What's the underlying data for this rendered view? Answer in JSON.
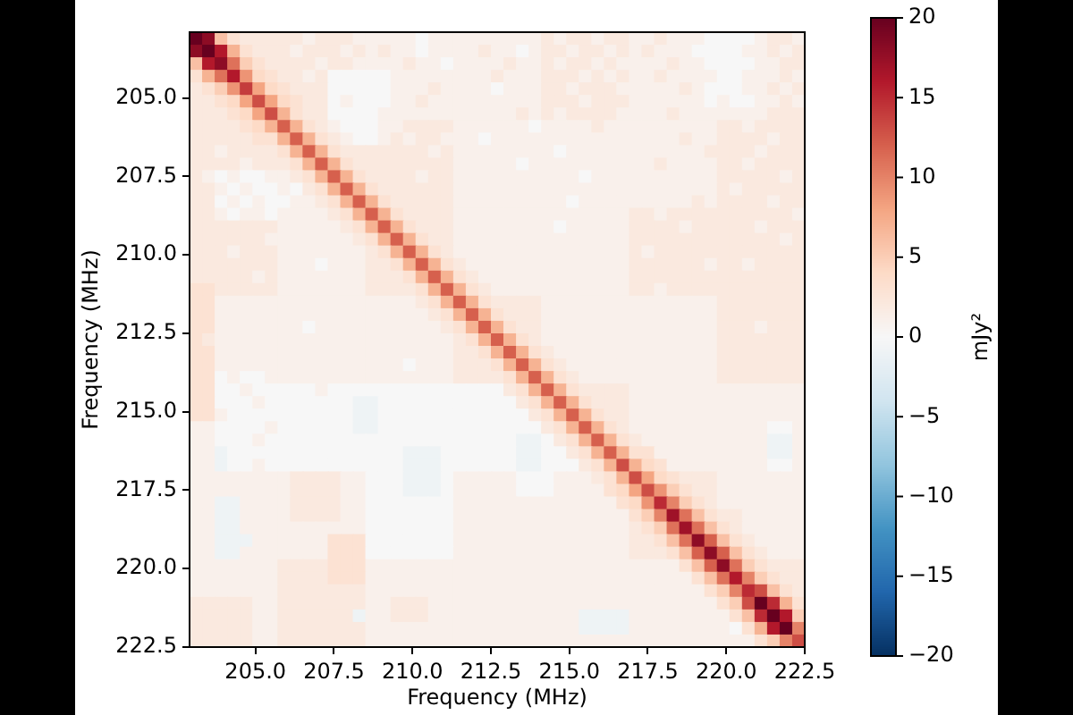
{
  "chart_data": {
    "type": "heatmap",
    "xlabel": "Frequency (MHz)",
    "ylabel": "Frequency (MHz)",
    "clabel": "mJy²",
    "x": [
      203.1,
      203.5,
      203.9,
      204.3,
      204.7,
      205.1,
      205.5,
      205.9,
      206.3,
      206.7,
      207.1,
      207.5,
      207.9,
      208.3,
      208.7,
      209.1,
      209.5,
      209.9,
      210.3,
      210.7,
      211.1,
      211.5,
      211.9,
      212.3,
      212.7,
      213.1,
      213.5,
      213.9,
      214.3,
      214.7,
      215.1,
      215.5,
      215.9,
      216.3,
      216.7,
      217.1,
      217.5,
      217.9,
      218.3,
      218.7,
      219.1,
      219.5,
      219.9,
      220.3,
      220.7,
      221.1,
      221.5,
      221.9,
      222.3
    ],
    "y": [
      203.1,
      203.5,
      203.9,
      204.3,
      204.7,
      205.1,
      205.5,
      205.9,
      206.3,
      206.7,
      207.1,
      207.5,
      207.9,
      208.3,
      208.7,
      209.1,
      209.5,
      209.9,
      210.3,
      210.7,
      211.1,
      211.5,
      211.9,
      212.3,
      212.7,
      213.1,
      213.5,
      213.9,
      214.3,
      214.7,
      215.1,
      215.5,
      215.9,
      216.3,
      216.7,
      217.1,
      217.5,
      217.9,
      218.3,
      218.7,
      219.1,
      219.5,
      219.9,
      220.3,
      220.7,
      221.1,
      221.5,
      221.9,
      222.3
    ],
    "xlim": [
      202.9,
      222.5
    ],
    "xticks": [
      {
        "value": 205,
        "label": "205.0"
      },
      207.5,
      {
        "value": 210,
        "label": "210.0"
      },
      212.5,
      {
        "value": 215,
        "label": "215.0"
      },
      217.5,
      {
        "value": 220,
        "label": "220.0"
      },
      222.5
    ],
    "ylim": [
      222.5,
      202.9
    ],
    "yticks": [
      {
        "value": 205,
        "label": "205.0"
      },
      207.5,
      {
        "value": 210,
        "label": "210.0"
      },
      212.5,
      {
        "value": 215,
        "label": "215.0"
      },
      217.5,
      {
        "value": 220,
        "label": "220.0"
      },
      222.5
    ],
    "clim": [
      -20,
      20
    ],
    "cticks": [
      {
        "value": -20,
        "label": "−20"
      },
      {
        "value": -15,
        "label": "−15"
      },
      {
        "value": -10,
        "label": "−10"
      },
      {
        "value": -5,
        "label": "−5"
      },
      0,
      5,
      10,
      15,
      20
    ],
    "cells": [
      [
        20,
        18,
        6,
        3,
        2,
        2,
        2,
        2,
        2,
        1,
        2,
        2,
        2,
        1,
        1,
        1,
        1,
        1,
        0,
        1,
        1,
        1,
        1,
        1,
        1,
        1,
        1,
        1,
        2,
        1,
        2,
        2,
        1,
        2,
        2,
        1,
        1,
        2,
        1,
        1,
        1,
        0,
        0,
        0,
        0,
        1,
        2,
        2,
        1
      ],
      [
        18,
        20,
        16,
        7,
        3,
        2,
        2,
        2,
        1,
        2,
        2,
        2,
        1,
        2,
        1,
        2,
        1,
        1,
        0,
        1,
        1,
        1,
        1,
        2,
        1,
        1,
        0,
        1,
        2,
        2,
        1,
        2,
        2,
        1,
        2,
        1,
        2,
        1,
        1,
        1,
        0,
        0,
        0,
        0,
        1,
        1,
        2,
        1,
        2
      ],
      [
        6,
        16,
        18,
        11,
        5,
        3,
        2,
        2,
        2,
        2,
        1,
        2,
        2,
        1,
        1,
        1,
        1,
        2,
        1,
        1,
        0,
        1,
        1,
        1,
        1,
        2,
        1,
        1,
        2,
        1,
        2,
        2,
        1,
        2,
        1,
        1,
        1,
        1,
        2,
        1,
        1,
        0,
        0,
        0,
        0,
        1,
        1,
        2,
        2
      ],
      [
        3,
        7,
        11,
        16,
        9,
        4,
        3,
        2,
        2,
        1,
        2,
        0,
        0,
        0,
        0,
        0,
        1,
        1,
        1,
        1,
        1,
        1,
        1,
        1,
        2,
        1,
        1,
        1,
        2,
        2,
        2,
        1,
        2,
        1,
        2,
        1,
        1,
        2,
        1,
        1,
        1,
        1,
        0,
        0,
        1,
        1,
        1,
        2,
        1
      ],
      [
        2,
        3,
        5,
        9,
        14,
        8,
        4,
        3,
        2,
        2,
        2,
        0,
        0,
        0,
        0,
        0,
        1,
        1,
        1,
        2,
        1,
        1,
        1,
        1,
        0,
        1,
        1,
        1,
        2,
        2,
        1,
        2,
        2,
        2,
        1,
        1,
        1,
        1,
        1,
        2,
        1,
        0,
        0,
        0,
        1,
        1,
        2,
        1,
        2
      ],
      [
        2,
        2,
        3,
        4,
        8,
        13,
        8,
        4,
        3,
        2,
        2,
        0,
        1,
        0,
        0,
        0,
        1,
        1,
        2,
        1,
        1,
        1,
        1,
        1,
        1,
        1,
        1,
        1,
        2,
        2,
        2,
        1,
        2,
        2,
        2,
        1,
        1,
        1,
        1,
        1,
        1,
        0,
        1,
        0,
        0,
        1,
        1,
        2,
        1
      ],
      [
        2,
        2,
        2,
        3,
        4,
        8,
        13,
        7,
        3,
        2,
        2,
        0,
        0,
        0,
        0,
        1,
        1,
        1,
        1,
        1,
        1,
        1,
        1,
        1,
        1,
        1,
        2,
        1,
        2,
        1,
        2,
        2,
        2,
        2,
        1,
        1,
        1,
        1,
        2,
        1,
        1,
        1,
        1,
        1,
        1,
        1,
        2,
        2,
        2
      ],
      [
        2,
        2,
        2,
        2,
        3,
        4,
        7,
        12,
        7,
        3,
        2,
        1,
        0,
        0,
        0,
        1,
        1,
        2,
        2,
        2,
        2,
        1,
        1,
        1,
        1,
        1,
        1,
        0,
        1,
        1,
        1,
        1,
        2,
        1,
        1,
        1,
        1,
        1,
        1,
        1,
        1,
        1,
        2,
        2,
        1,
        2,
        2,
        2,
        2
      ],
      [
        2,
        2,
        2,
        2,
        2,
        3,
        3,
        7,
        12,
        7,
        3,
        2,
        1,
        0,
        0,
        1,
        2,
        1,
        2,
        2,
        1,
        1,
        1,
        0,
        1,
        1,
        1,
        1,
        1,
        1,
        1,
        1,
        1,
        1,
        1,
        1,
        1,
        1,
        1,
        2,
        1,
        1,
        2,
        2,
        2,
        2,
        1,
        2,
        2
      ],
      [
        2,
        2,
        1,
        2,
        2,
        2,
        2,
        3,
        7,
        12,
        7,
        3,
        2,
        2,
        2,
        2,
        2,
        2,
        2,
        1,
        2,
        1,
        1,
        1,
        1,
        1,
        1,
        1,
        1,
        0,
        1,
        1,
        1,
        1,
        1,
        1,
        1,
        1,
        1,
        1,
        1,
        2,
        2,
        2,
        2,
        1,
        2,
        2,
        2
      ],
      [
        2,
        2,
        2,
        2,
        1,
        2,
        2,
        2,
        3,
        7,
        12,
        7,
        3,
        2,
        2,
        2,
        2,
        2,
        2,
        2,
        2,
        1,
        1,
        1,
        1,
        1,
        0,
        1,
        1,
        1,
        1,
        1,
        1,
        1,
        1,
        1,
        1,
        2,
        1,
        1,
        1,
        1,
        2,
        2,
        1,
        2,
        2,
        2,
        2
      ],
      [
        2,
        1,
        0,
        1,
        0,
        0,
        1,
        1,
        2,
        3,
        7,
        12,
        7,
        3,
        2,
        2,
        2,
        2,
        1,
        2,
        2,
        1,
        1,
        1,
        1,
        1,
        1,
        1,
        1,
        1,
        1,
        0,
        1,
        1,
        1,
        1,
        1,
        1,
        1,
        1,
        1,
        1,
        2,
        2,
        2,
        2,
        2,
        1,
        2
      ],
      [
        2,
        2,
        1,
        0,
        1,
        0,
        0,
        1,
        0,
        2,
        3,
        7,
        12,
        7,
        3,
        2,
        2,
        2,
        2,
        2,
        2,
        1,
        1,
        1,
        1,
        1,
        1,
        1,
        1,
        1,
        1,
        1,
        1,
        1,
        1,
        1,
        1,
        1,
        1,
        1,
        1,
        1,
        2,
        1,
        2,
        2,
        2,
        2,
        2
      ],
      [
        2,
        2,
        0,
        1,
        0,
        1,
        0,
        0,
        1,
        1,
        2,
        3,
        7,
        12,
        7,
        3,
        2,
        2,
        2,
        2,
        2,
        1,
        1,
        1,
        1,
        1,
        1,
        1,
        1,
        1,
        0,
        1,
        1,
        1,
        1,
        1,
        1,
        1,
        1,
        1,
        2,
        1,
        2,
        2,
        2,
        2,
        1,
        2,
        2
      ],
      [
        2,
        2,
        1,
        0,
        1,
        1,
        0,
        1,
        1,
        1,
        1,
        2,
        3,
        7,
        12,
        7,
        3,
        2,
        2,
        2,
        2,
        1,
        1,
        1,
        1,
        1,
        1,
        1,
        1,
        1,
        1,
        1,
        1,
        1,
        1,
        2,
        2,
        1,
        2,
        2,
        2,
        2,
        2,
        2,
        2,
        2,
        2,
        2,
        1
      ],
      [
        2,
        2,
        2,
        2,
        2,
        2,
        2,
        1,
        1,
        1,
        1,
        1,
        2,
        3,
        7,
        12,
        7,
        3,
        2,
        2,
        2,
        1,
        1,
        1,
        1,
        1,
        1,
        1,
        1,
        0,
        1,
        1,
        1,
        1,
        1,
        2,
        2,
        2,
        2,
        1,
        2,
        2,
        2,
        2,
        2,
        1,
        2,
        2,
        2
      ],
      [
        2,
        2,
        2,
        2,
        2,
        2,
        1,
        1,
        1,
        1,
        1,
        1,
        1,
        2,
        3,
        7,
        12,
        7,
        3,
        2,
        2,
        1,
        1,
        1,
        1,
        1,
        1,
        1,
        1,
        1,
        1,
        1,
        1,
        1,
        1,
        2,
        2,
        2,
        2,
        2,
        2,
        2,
        2,
        2,
        2,
        2,
        2,
        1,
        2
      ],
      [
        2,
        2,
        2,
        1,
        2,
        2,
        2,
        1,
        1,
        1,
        1,
        1,
        1,
        1,
        2,
        3,
        7,
        12,
        7,
        3,
        2,
        1,
        1,
        1,
        1,
        1,
        1,
        1,
        1,
        1,
        1,
        1,
        1,
        1,
        1,
        2,
        1,
        2,
        2,
        2,
        2,
        2,
        2,
        2,
        2,
        2,
        2,
        2,
        2
      ],
      [
        2,
        2,
        2,
        2,
        2,
        2,
        2,
        1,
        1,
        1,
        0,
        1,
        1,
        1,
        2,
        2,
        3,
        7,
        12,
        7,
        3,
        2,
        1,
        1,
        1,
        1,
        1,
        1,
        1,
        1,
        1,
        1,
        1,
        1,
        1,
        2,
        2,
        2,
        2,
        2,
        2,
        1,
        2,
        2,
        1,
        2,
        2,
        2,
        2
      ],
      [
        2,
        2,
        2,
        2,
        2,
        1,
        2,
        1,
        1,
        1,
        1,
        1,
        1,
        1,
        2,
        2,
        2,
        3,
        7,
        12,
        7,
        3,
        2,
        1,
        1,
        1,
        1,
        1,
        1,
        1,
        1,
        1,
        1,
        1,
        1,
        2,
        2,
        2,
        2,
        2,
        2,
        2,
        2,
        2,
        2,
        2,
        2,
        2,
        2
      ],
      [
        3,
        3,
        2,
        2,
        2,
        2,
        2,
        1,
        1,
        1,
        1,
        1,
        1,
        1,
        2,
        2,
        2,
        2,
        3,
        7,
        12,
        7,
        3,
        2,
        1,
        1,
        1,
        1,
        1,
        1,
        1,
        1,
        1,
        1,
        1,
        2,
        2,
        1,
        2,
        2,
        2,
        2,
        2,
        2,
        2,
        2,
        2,
        2,
        2
      ],
      [
        3,
        3,
        1,
        1,
        1,
        1,
        1,
        1,
        1,
        1,
        1,
        1,
        1,
        1,
        1,
        1,
        1,
        1,
        2,
        3,
        7,
        12,
        7,
        3,
        2,
        2,
        2,
        2,
        1,
        1,
        1,
        1,
        1,
        1,
        1,
        1,
        1,
        1,
        1,
        1,
        1,
        1,
        2,
        2,
        2,
        2,
        2,
        2,
        2
      ],
      [
        3,
        3,
        1,
        1,
        1,
        1,
        1,
        1,
        1,
        1,
        1,
        1,
        1,
        1,
        1,
        1,
        1,
        1,
        1,
        2,
        3,
        7,
        12,
        7,
        3,
        2,
        2,
        2,
        1,
        1,
        1,
        1,
        1,
        1,
        1,
        1,
        1,
        1,
        1,
        1,
        1,
        1,
        2,
        2,
        2,
        2,
        2,
        2,
        2
      ],
      [
        3,
        3,
        1,
        1,
        1,
        1,
        1,
        1,
        1,
        0,
        1,
        1,
        1,
        1,
        1,
        1,
        1,
        1,
        1,
        1,
        2,
        3,
        7,
        12,
        7,
        3,
        2,
        2,
        1,
        1,
        1,
        1,
        1,
        1,
        1,
        1,
        1,
        1,
        1,
        1,
        1,
        1,
        2,
        2,
        2,
        1,
        2,
        2,
        2
      ],
      [
        3,
        2,
        1,
        1,
        1,
        1,
        1,
        1,
        1,
        1,
        1,
        1,
        1,
        1,
        1,
        1,
        1,
        1,
        1,
        1,
        1,
        2,
        3,
        7,
        12,
        7,
        3,
        2,
        1,
        1,
        1,
        1,
        1,
        1,
        1,
        1,
        1,
        1,
        1,
        1,
        1,
        1,
        2,
        2,
        2,
        2,
        2,
        2,
        2
      ],
      [
        3,
        3,
        1,
        1,
        1,
        1,
        1,
        1,
        1,
        1,
        1,
        1,
        1,
        1,
        1,
        1,
        1,
        1,
        1,
        1,
        1,
        2,
        2,
        3,
        7,
        12,
        7,
        3,
        2,
        1,
        1,
        1,
        1,
        1,
        1,
        1,
        1,
        1,
        1,
        1,
        1,
        1,
        2,
        2,
        2,
        2,
        2,
        2,
        2
      ],
      [
        3,
        3,
        1,
        1,
        1,
        1,
        1,
        1,
        1,
        1,
        1,
        1,
        1,
        1,
        1,
        1,
        1,
        0,
        1,
        1,
        1,
        2,
        2,
        2,
        3,
        7,
        12,
        7,
        3,
        2,
        1,
        1,
        1,
        1,
        1,
        1,
        1,
        1,
        1,
        1,
        1,
        1,
        2,
        2,
        2,
        2,
        2,
        2,
        2
      ],
      [
        3,
        3,
        0,
        1,
        0,
        0,
        1,
        1,
        1,
        1,
        1,
        1,
        1,
        1,
        1,
        1,
        1,
        1,
        1,
        1,
        1,
        2,
        2,
        2,
        2,
        3,
        7,
        12,
        7,
        3,
        2,
        1,
        1,
        1,
        1,
        1,
        1,
        1,
        1,
        1,
        1,
        1,
        2,
        2,
        2,
        2,
        2,
        2,
        2
      ],
      [
        3,
        3,
        0,
        0,
        1,
        0,
        0,
        0,
        0,
        0,
        1,
        0,
        0,
        0,
        0,
        0,
        0,
        0,
        0,
        0,
        0,
        0,
        0,
        0,
        0,
        2,
        3,
        7,
        12,
        7,
        3,
        2,
        2,
        2,
        2,
        1,
        1,
        1,
        1,
        1,
        1,
        1,
        1,
        1,
        1,
        1,
        1,
        1,
        1
      ],
      [
        3,
        3,
        0,
        0,
        0,
        1,
        0,
        0,
        0,
        0,
        0,
        0,
        0,
        -1,
        -1,
        0,
        0,
        0,
        0,
        0,
        0,
        0,
        0,
        0,
        0,
        0,
        2,
        3,
        7,
        12,
        7,
        3,
        2,
        2,
        2,
        1,
        1,
        1,
        1,
        1,
        1,
        1,
        1,
        1,
        1,
        1,
        1,
        1,
        1
      ],
      [
        3,
        3,
        1,
        0,
        0,
        0,
        0,
        0,
        0,
        0,
        0,
        0,
        0,
        -1,
        -1,
        0,
        0,
        0,
        0,
        0,
        0,
        0,
        0,
        0,
        0,
        0,
        0,
        2,
        3,
        7,
        12,
        7,
        3,
        2,
        2,
        1,
        1,
        1,
        1,
        1,
        1,
        1,
        1,
        1,
        1,
        1,
        1,
        1,
        1
      ],
      [
        1,
        1,
        0,
        0,
        0,
        0,
        1,
        0,
        0,
        0,
        0,
        0,
        0,
        -1,
        -1,
        0,
        0,
        0,
        0,
        0,
        0,
        0,
        0,
        0,
        0,
        0,
        0,
        0,
        2,
        3,
        7,
        12,
        7,
        3,
        2,
        1,
        1,
        1,
        1,
        1,
        1,
        1,
        1,
        1,
        1,
        1,
        0,
        0,
        1
      ],
      [
        1,
        1,
        0,
        0,
        0,
        1,
        0,
        0,
        0,
        0,
        0,
        0,
        0,
        0,
        0,
        0,
        0,
        0,
        0,
        0,
        0,
        0,
        0,
        0,
        0,
        0,
        -1,
        -1,
        0,
        2,
        3,
        7,
        12,
        7,
        3,
        2,
        1,
        1,
        1,
        1,
        1,
        1,
        1,
        1,
        1,
        1,
        -1,
        -1,
        1
      ],
      [
        1,
        1,
        -1,
        0,
        0,
        0,
        0,
        0,
        0,
        0,
        0,
        0,
        0,
        0,
        0,
        0,
        0,
        -1,
        -1,
        -1,
        0,
        0,
        0,
        0,
        0,
        0,
        -1,
        -1,
        0,
        0,
        2,
        3,
        7,
        12,
        7,
        3,
        3,
        1,
        1,
        1,
        1,
        1,
        1,
        1,
        1,
        1,
        -1,
        -1,
        1
      ],
      [
        1,
        1,
        -1,
        0,
        0,
        1,
        0,
        0,
        0,
        0,
        0,
        0,
        0,
        0,
        0,
        0,
        0,
        -1,
        -1,
        -1,
        0,
        0,
        0,
        0,
        0,
        0,
        -1,
        -1,
        0,
        0,
        0,
        2,
        3,
        7,
        13,
        7,
        4,
        3,
        1,
        1,
        1,
        1,
        1,
        1,
        1,
        1,
        0,
        0,
        1
      ],
      [
        1,
        1,
        1,
        1,
        1,
        1,
        1,
        1,
        2,
        2,
        2,
        2,
        1,
        1,
        0,
        0,
        0,
        -1,
        -1,
        -1,
        0,
        1,
        1,
        1,
        1,
        1,
        0,
        0,
        0,
        1,
        1,
        1,
        2,
        3,
        7,
        13,
        8,
        4,
        3,
        2,
        2,
        2,
        1,
        1,
        1,
        1,
        1,
        1,
        1
      ],
      [
        1,
        1,
        1,
        1,
        1,
        1,
        1,
        1,
        2,
        2,
        2,
        2,
        1,
        1,
        0,
        0,
        0,
        -1,
        -1,
        -1,
        0,
        1,
        1,
        1,
        1,
        1,
        0,
        0,
        0,
        1,
        1,
        1,
        1,
        3,
        4,
        8,
        13,
        9,
        5,
        3,
        2,
        2,
        1,
        1,
        1,
        1,
        1,
        1,
        1
      ],
      [
        1,
        1,
        -1,
        -1,
        1,
        1,
        1,
        1,
        2,
        2,
        2,
        2,
        1,
        1,
        0,
        0,
        0,
        0,
        0,
        0,
        0,
        1,
        1,
        1,
        1,
        1,
        1,
        1,
        1,
        1,
        1,
        1,
        1,
        1,
        3,
        4,
        9,
        15,
        10,
        5,
        3,
        2,
        1,
        1,
        1,
        1,
        1,
        1,
        1
      ],
      [
        1,
        1,
        -1,
        -1,
        1,
        1,
        1,
        1,
        2,
        2,
        2,
        2,
        1,
        1,
        0,
        0,
        0,
        0,
        0,
        0,
        0,
        1,
        1,
        1,
        1,
        1,
        1,
        1,
        1,
        1,
        1,
        1,
        1,
        1,
        1,
        3,
        5,
        10,
        17,
        11,
        6,
        3,
        2,
        2,
        1,
        1,
        1,
        1,
        1
      ],
      [
        1,
        1,
        -1,
        -1,
        1,
        1,
        1,
        1,
        1,
        1,
        1,
        1,
        1,
        1,
        0,
        0,
        0,
        0,
        0,
        0,
        0,
        1,
        1,
        1,
        1,
        1,
        1,
        1,
        1,
        1,
        1,
        1,
        1,
        1,
        1,
        2,
        3,
        5,
        11,
        17,
        11,
        6,
        3,
        2,
        1,
        1,
        1,
        1,
        1
      ],
      [
        1,
        1,
        -1,
        -1,
        -1,
        1,
        1,
        1,
        1,
        1,
        1,
        3,
        3,
        3,
        0,
        0,
        0,
        0,
        0,
        0,
        0,
        1,
        1,
        1,
        1,
        1,
        1,
        1,
        1,
        1,
        1,
        1,
        1,
        1,
        1,
        2,
        2,
        3,
        6,
        11,
        18,
        12,
        6,
        3,
        2,
        1,
        1,
        1,
        1
      ],
      [
        1,
        1,
        -1,
        -1,
        1,
        1,
        1,
        1,
        1,
        1,
        1,
        3,
        3,
        3,
        0,
        0,
        0,
        0,
        0,
        0,
        0,
        1,
        1,
        1,
        1,
        1,
        1,
        1,
        1,
        1,
        1,
        1,
        1,
        1,
        1,
        2,
        2,
        2,
        3,
        6,
        12,
        18,
        12,
        6,
        3,
        2,
        1,
        1,
        1
      ],
      [
        1,
        1,
        1,
        1,
        1,
        1,
        1,
        2,
        2,
        2,
        2,
        3,
        3,
        3,
        1,
        1,
        1,
        1,
        1,
        1,
        1,
        1,
        1,
        1,
        1,
        1,
        1,
        1,
        1,
        1,
        1,
        1,
        1,
        1,
        1,
        1,
        1,
        1,
        1,
        3,
        6,
        12,
        18,
        11,
        5,
        3,
        2,
        2,
        2
      ],
      [
        1,
        1,
        1,
        1,
        1,
        1,
        1,
        2,
        2,
        2,
        2,
        3,
        3,
        3,
        1,
        1,
        1,
        1,
        1,
        1,
        1,
        1,
        1,
        1,
        1,
        1,
        1,
        1,
        1,
        1,
        1,
        1,
        1,
        1,
        1,
        1,
        1,
        1,
        1,
        1,
        3,
        6,
        11,
        16,
        10,
        5,
        3,
        2,
        2
      ],
      [
        1,
        1,
        1,
        1,
        1,
        1,
        1,
        2,
        2,
        2,
        2,
        2,
        2,
        2,
        1,
        1,
        1,
        1,
        1,
        1,
        1,
        1,
        1,
        1,
        1,
        1,
        1,
        1,
        1,
        1,
        1,
        1,
        1,
        1,
        1,
        1,
        1,
        1,
        1,
        1,
        1,
        3,
        5,
        10,
        15,
        13,
        6,
        3,
        2
      ],
      [
        2,
        2,
        2,
        2,
        2,
        1,
        1,
        2,
        2,
        2,
        2,
        2,
        2,
        2,
        1,
        1,
        2,
        2,
        2,
        1,
        1,
        1,
        1,
        1,
        1,
        1,
        1,
        1,
        1,
        1,
        1,
        1,
        1,
        1,
        1,
        1,
        1,
        1,
        1,
        1,
        1,
        1,
        3,
        5,
        13,
        20,
        15,
        7,
        3
      ],
      [
        2,
        2,
        2,
        2,
        2,
        1,
        1,
        2,
        2,
        2,
        2,
        2,
        2,
        -1,
        1,
        1,
        2,
        2,
        2,
        1,
        1,
        1,
        1,
        1,
        1,
        1,
        1,
        1,
        1,
        1,
        1,
        -1,
        -1,
        -1,
        -1,
        1,
        1,
        1,
        1,
        1,
        1,
        1,
        1,
        3,
        6,
        15,
        20,
        16,
        5
      ],
      [
        2,
        2,
        2,
        2,
        2,
        1,
        1,
        2,
        2,
        2,
        2,
        2,
        2,
        2,
        1,
        1,
        1,
        1,
        1,
        1,
        1,
        1,
        1,
        1,
        1,
        1,
        1,
        1,
        1,
        1,
        1,
        -1,
        -1,
        -1,
        -1,
        1,
        1,
        1,
        1,
        1,
        1,
        1,
        1,
        0,
        3,
        7,
        16,
        20,
        10
      ],
      [
        2,
        2,
        2,
        2,
        2,
        1,
        1,
        2,
        2,
        2,
        2,
        2,
        2,
        2,
        1,
        1,
        1,
        1,
        1,
        1,
        1,
        1,
        1,
        1,
        1,
        1,
        1,
        1,
        1,
        1,
        1,
        1,
        1,
        1,
        1,
        1,
        1,
        1,
        1,
        1,
        1,
        1,
        1,
        1,
        1,
        3,
        5,
        10,
        13
      ]
    ]
  }
}
